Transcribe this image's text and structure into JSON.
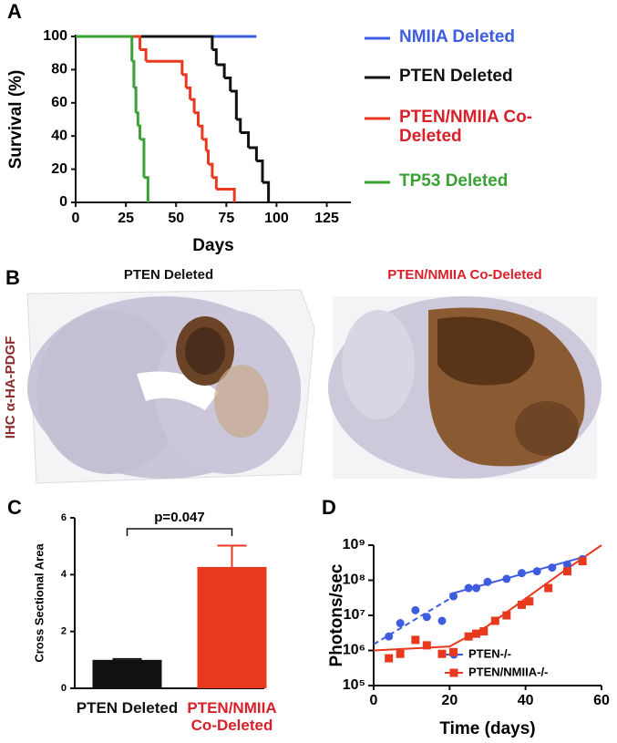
{
  "panel_letters": [
    "A",
    "B",
    "C",
    "D"
  ],
  "histology": {
    "titles": [
      "PTEN Deleted",
      "PTEN/NMIIA Co-Deleted"
    ],
    "side_label": "IHC α-HA-PDGF",
    "title_colors": [
      "#111111",
      "#d8202a"
    ],
    "side_label_color": "#8b2a2a"
  },
  "chart_data": [
    {
      "type": "step",
      "x_label": "Days",
      "y_label": "Survival (%)",
      "xlim": [
        0,
        137
      ],
      "xticks": [
        0,
        25,
        50,
        75,
        100,
        125
      ],
      "ylim": [
        0,
        100
      ],
      "yticks": [
        0,
        20,
        40,
        60,
        80,
        100
      ],
      "series": [
        {
          "name": "NMIIA Deleted",
          "color": "#3d5ce0",
          "x": [
            0,
            90
          ],
          "values": [
            100,
            100
          ]
        },
        {
          "name": "PTEN Deleted",
          "color": "#111111",
          "x": [
            0,
            68,
            70,
            74,
            77,
            80,
            82,
            86,
            90,
            93,
            96
          ],
          "values": [
            100,
            92,
            83,
            75,
            67,
            50,
            42,
            33,
            25,
            12,
            0
          ]
        },
        {
          "name": "PTEN/NMIIA Co-Deleted",
          "color": "#e8391f",
          "x": [
            0,
            32,
            35,
            53,
            55,
            57,
            59,
            61,
            63,
            65,
            66,
            68,
            70,
            79
          ],
          "values": [
            100,
            92,
            85,
            77,
            69,
            62,
            54,
            46,
            38,
            31,
            23,
            15,
            8,
            0
          ]
        },
        {
          "name": "TP53 Deleted",
          "color": "#3aa135",
          "x": [
            0,
            28,
            29,
            30,
            31,
            32,
            34,
            36
          ],
          "values": [
            100,
            85,
            69,
            54,
            46,
            38,
            15,
            0
          ]
        }
      ],
      "legend_text_colors": [
        "#3d5ce0",
        "#111111",
        "#d8202a",
        "#3aa135"
      ]
    },
    {
      "type": "bar",
      "y_label": "Cross Sectional Area",
      "annotation": "p=0.047",
      "categories": [
        "PTEN Deleted",
        "PTEN/NMIIA Co-Deleted"
      ],
      "values": [
        1.0,
        4.27
      ],
      "errors": [
        0.03,
        0.75
      ],
      "colors": [
        "#111111",
        "#e8391f"
      ],
      "label_colors": [
        "#111111",
        "#d8202a"
      ],
      "ylim": [
        0,
        6
      ],
      "yticks": [
        0,
        2,
        4,
        6
      ]
    },
    {
      "type": "scatter",
      "x_label": "Time (days)",
      "y_label": "Photons/sec",
      "log_y": true,
      "xlim": [
        0,
        60
      ],
      "xticks": [
        0,
        20,
        40,
        60
      ],
      "ylim": [
        100000,
        1000000000
      ],
      "yticks": [
        {
          "value": 100000,
          "label": "10⁵"
        },
        {
          "value": 1000000,
          "label": "10⁶"
        },
        {
          "value": 10000000,
          "label": "10⁷"
        },
        {
          "value": 100000000,
          "label": "10⁸"
        },
        {
          "value": 1000000000,
          "label": "10⁹"
        }
      ],
      "series": [
        {
          "name": "PTEN-/-",
          "color": "#3d5ce0",
          "marker": "circle",
          "x": [
            4,
            7,
            11,
            14,
            18,
            21,
            25,
            27,
            30,
            35,
            39,
            43,
            47,
            51,
            55
          ],
          "values": [
            2500000,
            6000000,
            14000000,
            9000000,
            7000000,
            35000000,
            60000000,
            60000000,
            90000000,
            110000000,
            160000000,
            180000000,
            230000000,
            280000000,
            400000000
          ]
        },
        {
          "name": "PTEN/NMIIA-/-",
          "color": "#e8391f",
          "marker": "square",
          "x": [
            4,
            7,
            11,
            14,
            18,
            21,
            25,
            27,
            29,
            32,
            35,
            39,
            41,
            46,
            51,
            55
          ],
          "values": [
            600000,
            800000,
            2000000,
            1400000,
            800000,
            900000,
            2500000,
            3000000,
            3500000,
            7000000,
            10000000,
            20000000,
            25000000,
            60000000,
            180000000,
            350000000
          ]
        }
      ],
      "fits": [
        {
          "color": "#3d5ce0",
          "dashed": true,
          "x": [
            0,
            22
          ],
          "values": [
            1500000,
            40000000
          ]
        },
        {
          "color": "#3d5ce0",
          "dashed": false,
          "x": [
            20,
            55
          ],
          "values": [
            40000000,
            450000000
          ]
        },
        {
          "color": "#e8391f",
          "dashed": false,
          "x": [
            0,
            20,
            30,
            40,
            50,
            60
          ],
          "values": [
            1000000,
            1300000,
            5000000,
            30000000,
            180000000,
            1000000000
          ]
        }
      ]
    }
  ]
}
